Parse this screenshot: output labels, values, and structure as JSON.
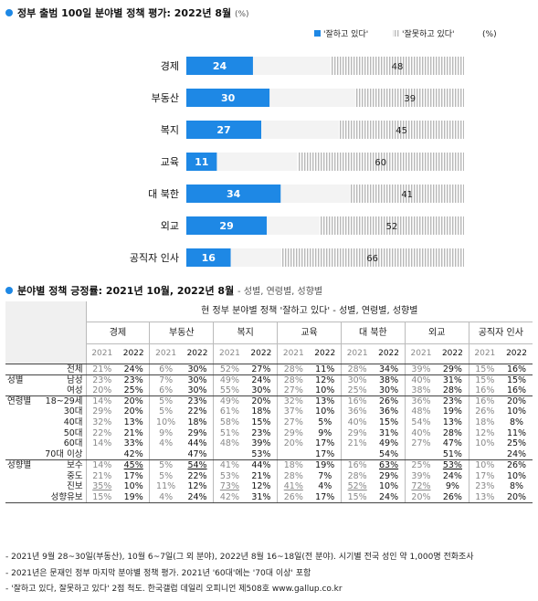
{
  "section1": {
    "title": "정부 출범 100일 분야별 정책 평가: 2022년 8월",
    "unit": "(%)"
  },
  "chart_data": {
    "type": "bar",
    "orientation": "horizontal-stacked",
    "categories": [
      "경제",
      "부동산",
      "복지",
      "교육",
      "대 북한",
      "외교",
      "공직자 인사"
    ],
    "series": [
      {
        "name": "'잘하고 있다'",
        "values": [
          24,
          30,
          27,
          11,
          34,
          29,
          16
        ],
        "color": "#1e88e5"
      },
      {
        "name": "'잘못하고 있다'",
        "values": [
          48,
          39,
          45,
          60,
          41,
          52,
          66
        ],
        "color": "#c8c8c8"
      }
    ],
    "legend_suffix": "(%)",
    "legend_position": "top-right"
  },
  "section2": {
    "title": "분야별 정책 긍정률: 2021년 10월, 2022년 8월",
    "subtitle": "- 성별, 연령별, 성향별",
    "header_main": "현 정부 분야별 정책 '잘하고 있다' - 성별, 연령별, 성향별",
    "categories": [
      "경제",
      "부동산",
      "복지",
      "교육",
      "대 북한",
      "외교",
      "공직자 인사"
    ],
    "years": [
      "2021",
      "2022"
    ],
    "rows": [
      {
        "g": "",
        "s": "전체",
        "v": [
          "21%",
          "24%",
          "6%",
          "30%",
          "52%",
          "27%",
          "28%",
          "11%",
          "28%",
          "34%",
          "39%",
          "29%",
          "15%",
          "16%"
        ],
        "end": true
      },
      {
        "g": "성별",
        "s": "남성",
        "v": [
          "23%",
          "23%",
          "7%",
          "30%",
          "49%",
          "24%",
          "28%",
          "12%",
          "30%",
          "38%",
          "40%",
          "31%",
          "15%",
          "15%"
        ]
      },
      {
        "g": "",
        "s": "여성",
        "v": [
          "20%",
          "25%",
          "6%",
          "30%",
          "55%",
          "30%",
          "27%",
          "10%",
          "25%",
          "30%",
          "38%",
          "28%",
          "16%",
          "16%"
        ],
        "end": true
      },
      {
        "g": "연령별",
        "s": "18~29세",
        "v": [
          "14%",
          "20%",
          "5%",
          "23%",
          "49%",
          "20%",
          "32%",
          "13%",
          "16%",
          "26%",
          "36%",
          "23%",
          "16%",
          "20%"
        ]
      },
      {
        "g": "",
        "s": "30대",
        "v": [
          "29%",
          "20%",
          "5%",
          "22%",
          "61%",
          "18%",
          "37%",
          "10%",
          "36%",
          "36%",
          "48%",
          "19%",
          "26%",
          "10%"
        ]
      },
      {
        "g": "",
        "s": "40대",
        "v": [
          "32%",
          "13%",
          "10%",
          "18%",
          "58%",
          "15%",
          "27%",
          "5%",
          "40%",
          "15%",
          "54%",
          "13%",
          "18%",
          "8%"
        ]
      },
      {
        "g": "",
        "s": "50대",
        "v": [
          "22%",
          "21%",
          "9%",
          "29%",
          "51%",
          "23%",
          "29%",
          "9%",
          "29%",
          "31%",
          "40%",
          "28%",
          "12%",
          "11%"
        ]
      },
      {
        "g": "",
        "s": "60대",
        "v": [
          "14%",
          "33%",
          "4%",
          "44%",
          "48%",
          "39%",
          "20%",
          "17%",
          "21%",
          "49%",
          "27%",
          "47%",
          "10%",
          "25%"
        ]
      },
      {
        "g": "",
        "s": "70대 이상",
        "v": [
          "",
          "42%",
          "",
          "47%",
          "",
          "53%",
          "",
          "17%",
          "",
          "54%",
          "",
          "51%",
          "",
          "24%"
        ],
        "end": true
      },
      {
        "g": "성향별",
        "s": "보수",
        "v": [
          "14%",
          "45%",
          "5%",
          "54%",
          "41%",
          "44%",
          "18%",
          "19%",
          "16%",
          "63%",
          "25%",
          "53%",
          "10%",
          "26%"
        ],
        "u": [
          1,
          3,
          9,
          11
        ]
      },
      {
        "g": "",
        "s": "중도",
        "v": [
          "21%",
          "17%",
          "5%",
          "22%",
          "53%",
          "21%",
          "28%",
          "7%",
          "28%",
          "29%",
          "39%",
          "24%",
          "17%",
          "10%"
        ]
      },
      {
        "g": "",
        "s": "진보",
        "v": [
          "35%",
          "10%",
          "11%",
          "12%",
          "73%",
          "12%",
          "41%",
          "4%",
          "52%",
          "10%",
          "72%",
          "9%",
          "23%",
          "8%"
        ],
        "u": [
          0,
          4,
          6,
          8,
          10
        ]
      },
      {
        "g": "",
        "s": "성향유보",
        "v": [
          "15%",
          "19%",
          "4%",
          "24%",
          "42%",
          "31%",
          "26%",
          "17%",
          "15%",
          "24%",
          "20%",
          "26%",
          "13%",
          "20%"
        ],
        "end": true
      }
    ]
  },
  "notes": [
    "- 2021년 9월 28~30일(부동산), 10월 6~7일(그 외 분야), 2022년 8월 16~18일(전 분야). 시기별 전국 성인 약 1,000명 전화조사",
    "- 2021년은 문재인 정부 마지막 분야별 정책 평가. 2021년 '60대'에는 '70대 이상' 포함",
    "- '잘하고 있다, 잘못하고 있다' 2점 척도. 한국갤럽 데일리 오피니언 제508호 www.gallup.co.kr"
  ]
}
